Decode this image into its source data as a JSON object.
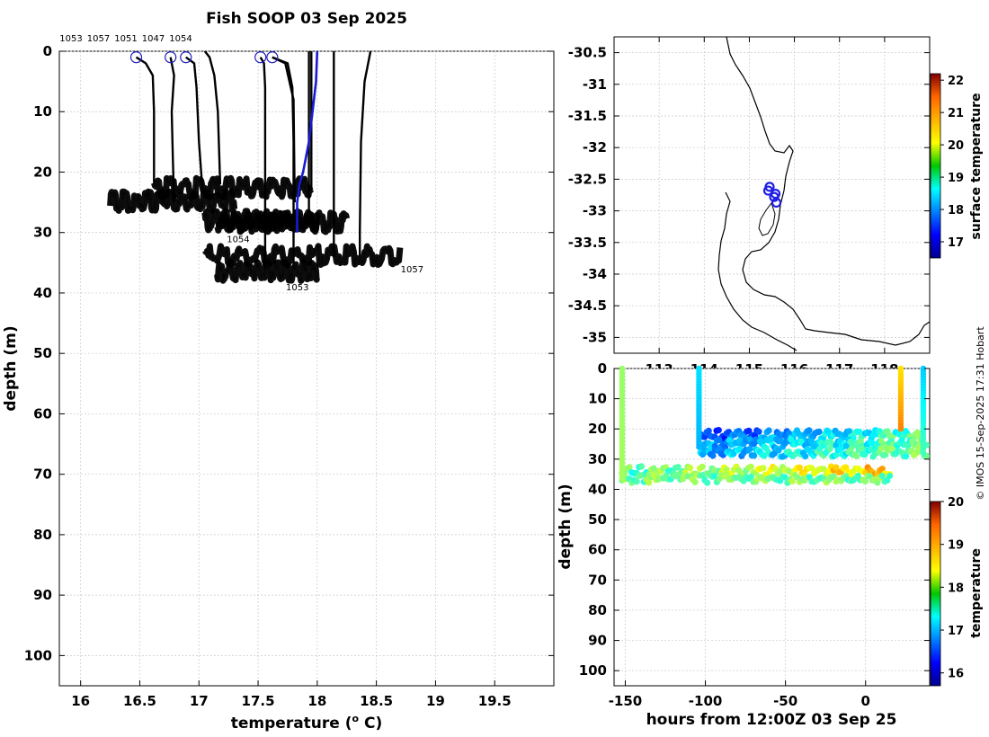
{
  "chart_data": [
    {
      "id": "profiles",
      "type": "line",
      "title": "Fish SOOP 03 Sep 2025",
      "xlabel_prefix": "temperature (",
      "xlabel_sup": "o",
      "xlabel_suffix": " C)",
      "ylabel": "depth (m)",
      "xlim": [
        15.82,
        20.0
      ],
      "ylim": [
        0,
        105
      ],
      "xticks": [
        "16",
        "16.5",
        "17",
        "17.5",
        "18",
        "18.5",
        "19",
        "19.5"
      ],
      "yticks": [
        "0",
        "10",
        "20",
        "30",
        "40",
        "50",
        "60",
        "70",
        "80",
        "90",
        "100"
      ],
      "grid": true,
      "top_labels": [
        "1053",
        "1057",
        "1051",
        "1047",
        "1054"
      ],
      "deployments": [
        {
          "name": "1053",
          "start": [
            16.47,
            1
          ],
          "profiles": [
            {
              "temp": [
                16.47,
                16.55,
                16.61,
                16.62,
                16.62
              ],
              "depth": [
                1,
                2,
                4,
                10,
                22
              ]
            },
            {
              "temp": [
                17.05,
                17.09,
                17.13,
                17.16,
                17.18
              ],
              "depth": [
                0,
                1,
                4,
                10,
                22
              ]
            },
            {
              "temp": [
                17.52,
                17.55,
                17.56,
                17.56,
                17.56
              ],
              "depth": [
                1,
                2,
                6,
                15,
                36
              ]
            },
            {
              "temp": [
                17.62,
                17.75,
                17.79,
                17.8,
                17.8
              ],
              "depth": [
                1,
                2,
                6,
                15,
                36
              ]
            }
          ],
          "band": {
            "t0": 17.15,
            "t1": 18.0,
            "d": 37.2,
            "label_t": 17.72,
            "label_d": 39
          }
        },
        {
          "name": "1057",
          "start": [
            16.76,
            1
          ],
          "profiles": [
            {
              "temp": [
                16.76,
                16.79,
                16.77,
                16.78,
                16.79
              ],
              "depth": [
                1,
                4,
                10,
                18,
                25
              ]
            },
            {
              "temp": [
                18.45,
                18.4,
                18.37,
                18.36,
                18.36
              ],
              "depth": [
                0,
                5,
                15,
                30,
                34
              ]
            },
            {
              "temp": [
                18.14,
                18.14,
                18.14,
                18.14
              ],
              "depth": [
                0,
                10,
                20,
                34
              ]
            }
          ],
          "band": {
            "t0": 17.05,
            "t1": 18.7,
            "d": 34.6,
            "label_t": 18.69,
            "label_d": 36
          }
        },
        {
          "name": "1051",
          "start": [
            16.89,
            1
          ],
          "profiles": [
            {
              "temp": [
                16.89,
                16.96,
                16.98,
                17.0,
                17.03
              ],
              "depth": [
                1,
                2,
                6,
                15,
                23
              ]
            },
            {
              "temp": [
                17.93,
                17.93,
                17.93,
                17.93,
                17.93
              ],
              "depth": [
                0,
                8,
                15,
                20,
                28
              ]
            }
          ],
          "band": {
            "t0": 17.05,
            "t1": 18.0,
            "d": 28.8,
            "label_t": 17.16,
            "label_d": 28
          }
        },
        {
          "name": "1047",
          "start": [
            17.52,
            1
          ],
          "profiles": [
            {
              "temp": [
                17.95,
                17.95,
                17.95,
                17.95
              ],
              "depth": [
                0,
                8,
                16,
                23
              ]
            }
          ],
          "band": {
            "t0": 16.25,
            "t1": 17.3,
            "d": 25.6,
            "label_t": 17.05,
            "label_d": 24
          }
        },
        {
          "name": "1054",
          "start": [
            17.62,
            1
          ],
          "profiles": [
            {
              "temp": [
                17.62,
                17.73,
                17.8,
                17.81
              ],
              "depth": [
                1,
                2,
                8,
                25
              ]
            }
          ],
          "band": {
            "t0": 17.15,
            "t1": 18.25,
            "d": 29.1,
            "label_t": 17.22,
            "label_d": 31
          }
        }
      ],
      "upper_band": {
        "t0": 16.62,
        "t1": 17.95,
        "d": 23.4
      },
      "blue_profile": {
        "temp": [
          18.0,
          17.99,
          17.96,
          17.93,
          17.88,
          17.85,
          17.83,
          17.83
        ],
        "depth": [
          0,
          5,
          10,
          15,
          20,
          22,
          25,
          30
        ]
      }
    },
    {
      "id": "map",
      "type": "scatter",
      "colorbar_label": "surface temperature",
      "colorbar_ticks": [
        "17",
        "18",
        "19",
        "20",
        "21",
        "22"
      ],
      "colorbar_range": [
        16.5,
        22.2
      ],
      "lon_ticks": [
        "113",
        "114",
        "115",
        "116",
        "117",
        "118"
      ],
      "lat_ticks": [
        "-30.5",
        "-31",
        "-31.5",
        "-32",
        "-32.5",
        "-33",
        "-33.5",
        "-34",
        "-34.5",
        "-35"
      ],
      "lon_range": [
        112.0,
        119.0
      ],
      "lat_range": [
        -35.25,
        -30.25
      ],
      "points": [
        {
          "lon": 115.45,
          "lat": -32.62
        },
        {
          "lon": 115.42,
          "lat": -32.68
        },
        {
          "lon": 115.58,
          "lat": -32.73
        },
        {
          "lon": 115.55,
          "lat": -32.78
        },
        {
          "lon": 115.6,
          "lat": -32.87
        }
      ]
    },
    {
      "id": "timeline",
      "type": "scatter",
      "xlabel": "hours from 12:00Z 03 Sep 25",
      "ylabel": "depth (m)",
      "xlim": [
        -157,
        40
      ],
      "ylim": [
        0,
        105
      ],
      "xticks": [
        "-150",
        "-100",
        "-50",
        "0"
      ],
      "yticks": [
        "0",
        "10",
        "20",
        "30",
        "40",
        "50",
        "60",
        "70",
        "80",
        "90",
        "100"
      ],
      "colorbar_label": "temperature",
      "colorbar_ticks": [
        "16",
        "17",
        "18",
        "19",
        "20"
      ],
      "colorbar_range": [
        15.7,
        20.0
      ],
      "vertical_casts": [
        {
          "hour": -152,
          "depth_range": [
            0,
            36
          ],
          "temps": [
            17.95,
            18.0
          ]
        },
        {
          "hour": -104,
          "depth_range": [
            0,
            26
          ],
          "temps": [
            17.2,
            17.0
          ]
        },
        {
          "hour": 22,
          "depth_range": [
            0,
            20
          ],
          "temps": [
            18.5,
            18.9
          ]
        },
        {
          "hour": 36,
          "depth_range": [
            0,
            28
          ],
          "temps": [
            17.1,
            17.6
          ]
        }
      ],
      "bands": [
        {
          "t0": -103,
          "t1": 35,
          "depth": 22.5,
          "temp_start": 16.6,
          "temp_end": 17.9
        },
        {
          "t0": -103,
          "t1": 38,
          "depth": 25.5,
          "temp_start": 17.0,
          "temp_end": 17.9
        },
        {
          "t0": -103,
          "t1": 38,
          "depth": 28.5,
          "temp_start": 17.1,
          "temp_end": 18.0
        },
        {
          "t0": -152,
          "t1": 15,
          "depth": 34.5,
          "temp_start": 17.8,
          "temp_end": 18.8
        },
        {
          "t0": -152,
          "t1": 15,
          "depth": 37.2,
          "temp_start": 18.0,
          "temp_end": 17.9
        }
      ]
    }
  ],
  "footer": {
    "credit": "© IMOS 15-Sep-2025 17:31 Hobart"
  }
}
